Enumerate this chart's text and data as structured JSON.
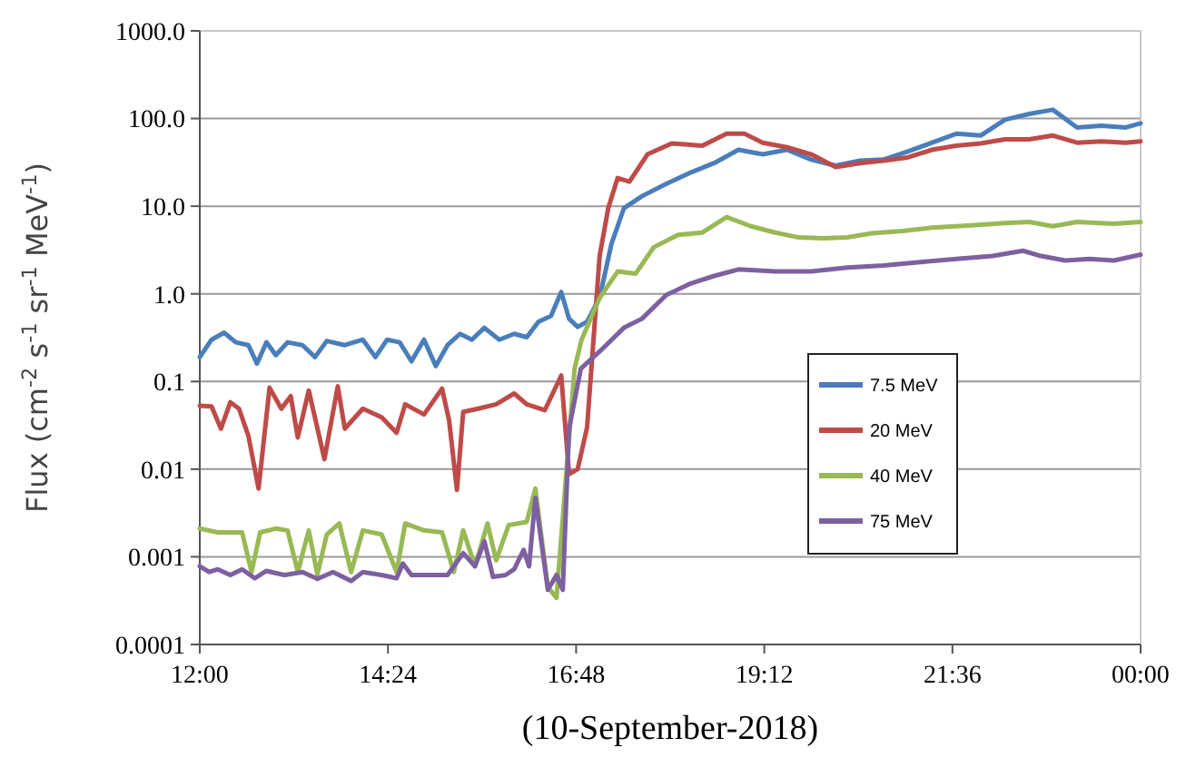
{
  "chart_data": {
    "type": "line",
    "xlabel": "(10-September-2018)",
    "ylabel": "Flux (cm$^{-2}$ s$^{-1}$ sr$^{-1}$ MeV$^{-1}$)",
    "log": "y",
    "grid": "y",
    "legend": "right",
    "xlim": [
      12,
      24
    ],
    "xticks": [
      {
        "value": 12,
        "label": "12:00"
      },
      {
        "value": 14.4,
        "label": "14:24"
      },
      {
        "value": 16.8,
        "label": "16:48"
      },
      {
        "value": 19.2,
        "label": "19:12"
      },
      {
        "value": 21.6,
        "label": "21:36"
      },
      {
        "value": 24,
        "label": "00:00"
      }
    ],
    "ylim": [
      0.0001,
      1000
    ],
    "yticks": [
      {
        "value": 0.0001,
        "label": "0.0001"
      },
      {
        "value": 0.001,
        "label": "0.001"
      },
      {
        "value": 0.01,
        "label": "0.01"
      },
      {
        "value": 0.1,
        "label": "0.1"
      },
      {
        "value": 1,
        "label": "1.0"
      },
      {
        "value": 10,
        "label": "10.0"
      },
      {
        "value": 100,
        "label": "100.0"
      },
      {
        "value": 1000,
        "label": "1000.0"
      }
    ],
    "series": [
      {
        "name": "7.5 MeV",
        "color": "#4a7ebb",
        "x": [
          12.0,
          12.15,
          12.31,
          12.46,
          12.62,
          12.73,
          12.85,
          12.97,
          13.12,
          13.31,
          13.47,
          13.62,
          13.85,
          14.08,
          14.24,
          14.39,
          14.55,
          14.7,
          14.86,
          15.01,
          15.16,
          15.32,
          15.47,
          15.63,
          15.82,
          16.01,
          16.17,
          16.32,
          16.48,
          16.61,
          16.71,
          16.82,
          16.94,
          17.1,
          17.25,
          17.41,
          17.64,
          17.95,
          18.25,
          18.56,
          18.87,
          19.18,
          19.49,
          19.8,
          20.11,
          20.42,
          20.72,
          21.03,
          21.34,
          21.65,
          21.96,
          22.27,
          22.58,
          22.88,
          23.19,
          23.5,
          23.81,
          24
        ],
        "values": [
          0.19,
          0.3,
          0.36,
          0.28,
          0.26,
          0.16,
          0.28,
          0.2,
          0.28,
          0.26,
          0.19,
          0.29,
          0.26,
          0.3,
          0.19,
          0.3,
          0.28,
          0.17,
          0.3,
          0.15,
          0.26,
          0.35,
          0.3,
          0.41,
          0.3,
          0.35,
          0.32,
          0.48,
          0.56,
          1.05,
          0.52,
          0.42,
          0.48,
          0.9,
          3.7,
          9.5,
          13,
          18,
          24,
          31,
          44,
          39,
          44,
          34,
          29,
          33,
          34,
          42,
          53,
          67,
          64,
          97,
          113,
          126,
          79,
          83,
          79,
          88
        ]
      },
      {
        "name": "20 MeV",
        "color": "#be4b48",
        "x": [
          12.0,
          12.15,
          12.27,
          12.39,
          12.5,
          12.62,
          12.75,
          12.89,
          13.04,
          13.16,
          13.25,
          13.39,
          13.59,
          13.76,
          13.85,
          14.08,
          14.32,
          14.51,
          14.62,
          14.86,
          15.09,
          15.18,
          15.28,
          15.36,
          15.55,
          15.78,
          16.01,
          16.17,
          16.4,
          16.61,
          16.71,
          16.82,
          16.94,
          17.1,
          17.21,
          17.33,
          17.48,
          17.71,
          18.02,
          18.41,
          18.72,
          18.95,
          19.18,
          19.49,
          19.8,
          20.11,
          20.42,
          20.72,
          21.03,
          21.34,
          21.65,
          21.96,
          22.27,
          22.58,
          22.88,
          23.19,
          23.5,
          23.81,
          24
        ],
        "values": [
          0.053,
          0.052,
          0.029,
          0.058,
          0.049,
          0.024,
          0.006,
          0.085,
          0.049,
          0.068,
          0.023,
          0.079,
          0.013,
          0.088,
          0.029,
          0.049,
          0.039,
          0.026,
          0.055,
          0.042,
          0.083,
          0.036,
          0.0058,
          0.045,
          0.049,
          0.055,
          0.073,
          0.055,
          0.047,
          0.117,
          0.0088,
          0.01,
          0.03,
          2.7,
          9.5,
          21,
          19,
          39,
          52,
          49,
          67,
          67,
          53,
          47,
          39,
          28,
          31,
          33,
          36,
          44,
          49,
          52,
          58,
          58,
          64,
          53,
          55,
          53,
          55
        ]
      },
      {
        "name": "40 MeV",
        "color": "#98b954",
        "x": [
          12.0,
          12.23,
          12.54,
          12.66,
          12.77,
          12.97,
          13.12,
          13.25,
          13.39,
          13.5,
          13.62,
          13.78,
          13.93,
          14.08,
          14.32,
          14.51,
          14.62,
          14.86,
          15.09,
          15.24,
          15.36,
          15.51,
          15.67,
          15.78,
          15.94,
          16.17,
          16.28,
          16.44,
          16.55,
          16.78,
          16.87,
          17.1,
          17.33,
          17.56,
          17.79,
          18.1,
          18.41,
          18.72,
          19.03,
          19.34,
          19.64,
          19.95,
          20.26,
          20.57,
          20.96,
          21.34,
          21.8,
          22.27,
          22.58,
          22.88,
          23.19,
          23.66,
          24
        ],
        "values": [
          0.0021,
          0.0019,
          0.0019,
          0.00067,
          0.0019,
          0.0021,
          0.002,
          0.00067,
          0.002,
          0.00063,
          0.0018,
          0.0024,
          0.00067,
          0.002,
          0.0018,
          0.00067,
          0.0024,
          0.002,
          0.0019,
          0.00067,
          0.002,
          0.00078,
          0.0024,
          0.00091,
          0.0023,
          0.0025,
          0.006,
          0.00045,
          0.00034,
          0.14,
          0.3,
          0.9,
          1.8,
          1.7,
          3.4,
          4.7,
          5.0,
          7.5,
          5.9,
          5.0,
          4.4,
          4.3,
          4.4,
          4.9,
          5.2,
          5.7,
          6.0,
          6.4,
          6.6,
          5.9,
          6.6,
          6.3,
          6.6
        ]
      },
      {
        "name": "75 MeV",
        "color": "#7d60a0",
        "x": [
          12.0,
          12.12,
          12.23,
          12.39,
          12.54,
          12.7,
          12.85,
          13.08,
          13.31,
          13.5,
          13.7,
          13.93,
          14.08,
          14.32,
          14.51,
          14.59,
          14.7,
          14.93,
          15.16,
          15.36,
          15.51,
          15.63,
          15.74,
          15.9,
          16.01,
          16.13,
          16.2,
          16.28,
          16.44,
          16.55,
          16.63,
          16.71,
          16.86,
          17.1,
          17.41,
          17.64,
          17.95,
          18.25,
          18.56,
          18.87,
          19.34,
          19.8,
          20.26,
          20.72,
          21.19,
          21.65,
          22.11,
          22.5,
          22.73,
          23.04,
          23.35,
          23.66,
          24
        ],
        "values": [
          0.00078,
          0.00067,
          0.00072,
          0.00062,
          0.00072,
          0.00057,
          0.00069,
          0.00062,
          0.00067,
          0.00056,
          0.00067,
          0.00053,
          0.00067,
          0.00062,
          0.00057,
          0.00084,
          0.00062,
          0.00062,
          0.00062,
          0.0011,
          0.00078,
          0.0015,
          0.00059,
          0.00062,
          0.00072,
          0.0012,
          0.00078,
          0.0047,
          0.00042,
          0.00062,
          0.00042,
          0.029,
          0.14,
          0.22,
          0.41,
          0.52,
          0.97,
          1.3,
          1.6,
          1.9,
          1.8,
          1.8,
          2.0,
          2.1,
          2.3,
          2.5,
          2.7,
          3.1,
          2.7,
          2.4,
          2.5,
          2.4,
          2.8
        ]
      }
    ]
  }
}
